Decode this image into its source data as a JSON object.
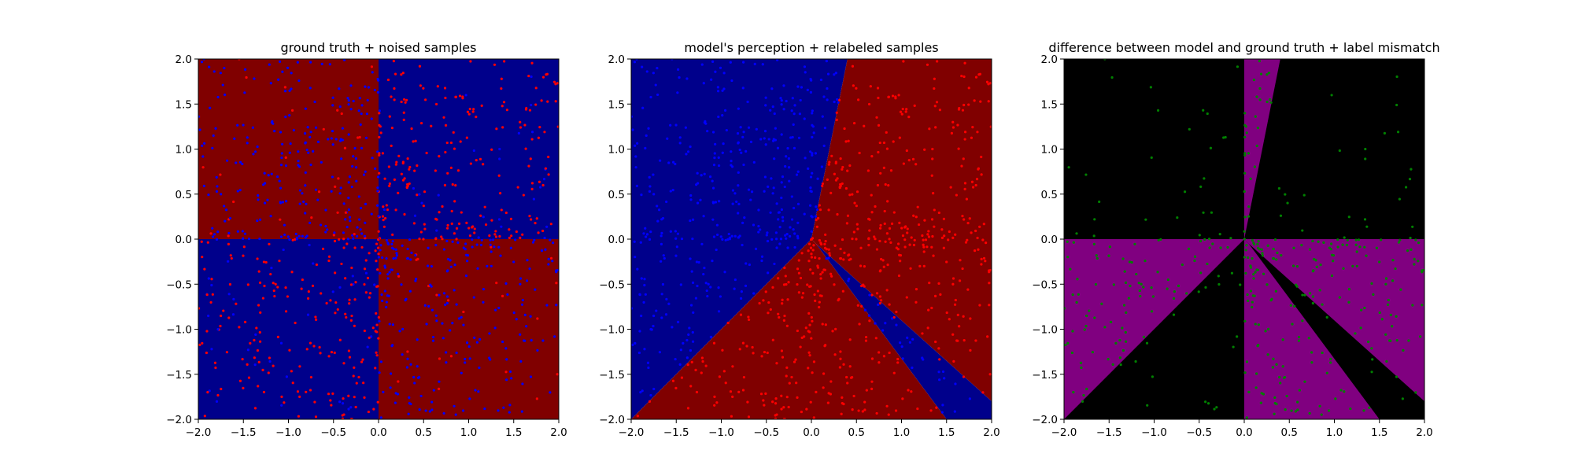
{
  "colors": {
    "red": "#800000",
    "blue": "#00008b",
    "purple": "#800080",
    "black": "#000000",
    "point_red": "#ff0000",
    "point_blue": "#0000ff",
    "point_green": "#008000"
  },
  "chart_data": [
    {
      "type": "scatter",
      "title": "ground truth + noised samples",
      "xlim": [
        -2,
        2
      ],
      "ylim": [
        -2,
        2
      ],
      "xticks": [
        "−2.0",
        "−1.5",
        "−1.0",
        "−0.5",
        "0.0",
        "0.5",
        "1.0",
        "1.5",
        "2.0"
      ],
      "yticks": [
        "−2.0",
        "−1.5",
        "−1.0",
        "−0.5",
        "0.0",
        "0.5",
        "1.0",
        "1.5",
        "2.0"
      ],
      "background": "quadrant checkerboard: x·y < 0 red, x·y > 0 blue",
      "regions": [
        {
          "color": "red",
          "polygon": [
            [
              -2,
              0
            ],
            [
              0,
              0
            ],
            [
              0,
              2
            ],
            [
              -2,
              2
            ]
          ]
        },
        {
          "color": "blue",
          "polygon": [
            [
              0,
              0
            ],
            [
              2,
              0
            ],
            [
              2,
              2
            ],
            [
              0,
              2
            ]
          ]
        },
        {
          "color": "blue",
          "polygon": [
            [
              -2,
              -2
            ],
            [
              0,
              -2
            ],
            [
              0,
              0
            ],
            [
              -2,
              0
            ]
          ]
        },
        {
          "color": "red",
          "polygon": [
            [
              0,
              -2
            ],
            [
              2,
              -2
            ],
            [
              2,
              0
            ],
            [
              0,
              0
            ]
          ]
        }
      ],
      "series": [
        {
          "marker_color": "point_red",
          "label_rule": "x·y > 0 (mostly, with noise)"
        },
        {
          "marker_color": "point_blue",
          "label_rule": "x·y < 0 (mostly, with noise)"
        }
      ],
      "n_points_approx": 1000,
      "point_distribution": "denser near origin"
    },
    {
      "type": "scatter",
      "title": "model's perception + relabeled samples",
      "xlim": [
        -2,
        2
      ],
      "ylim": [
        -2,
        2
      ],
      "xticks": [
        "−2.0",
        "−1.5",
        "−1.0",
        "−0.5",
        "0.0",
        "0.5",
        "1.0",
        "1.5",
        "2.0"
      ],
      "yticks": [
        "−2.0",
        "−1.5",
        "−1.0",
        "−0.5",
        "0.0",
        "0.5",
        "1.0",
        "1.5",
        "2.0"
      ],
      "regions": [
        {
          "color": "blue",
          "polygon": [
            [
              -2,
              -2
            ],
            [
              0,
              0
            ],
            [
              0.4,
              2
            ],
            [
              -2,
              2
            ]
          ]
        },
        {
          "color": "red",
          "polygon": [
            [
              0,
              0
            ],
            [
              0.4,
              2
            ],
            [
              2,
              2
            ],
            [
              2,
              -1.8
            ],
            [
              0.05,
              -0.05
            ]
          ]
        },
        {
          "color": "blue",
          "polygon": [
            [
              0.05,
              -0.05
            ],
            [
              2,
              -1.8
            ],
            [
              2,
              -2
            ],
            [
              1.5,
              -2
            ]
          ]
        },
        {
          "color": "red",
          "polygon": [
            [
              0,
              0
            ],
            [
              0.05,
              -0.05
            ],
            [
              1.5,
              -2
            ],
            [
              -2,
              -2
            ]
          ]
        }
      ],
      "series": [
        {
          "marker_color": "point_red",
          "label_rule": "point lies in red model region"
        },
        {
          "marker_color": "point_blue",
          "label_rule": "point lies in blue model region"
        }
      ],
      "n_points_approx": 1000
    },
    {
      "type": "scatter",
      "title": "difference between model and ground truth + label mismatch",
      "xlim": [
        -2,
        2
      ],
      "ylim": [
        -2,
        2
      ],
      "xticks": [
        "−2.0",
        "−1.5",
        "−1.0",
        "−0.5",
        "0.0",
        "0.5",
        "1.0",
        "1.5",
        "2.0"
      ],
      "yticks": [
        "−2.0",
        "−1.5",
        "−1.0",
        "−0.5",
        "0.0",
        "0.5",
        "1.0",
        "1.5",
        "2.0"
      ],
      "regions": [
        {
          "color": "black",
          "polygon": [
            [
              -2,
              -2
            ],
            [
              2,
              -2
            ],
            [
              2,
              2
            ],
            [
              -2,
              2
            ]
          ]
        },
        {
          "color": "purple",
          "polygon": [
            [
              0,
              0
            ],
            [
              0,
              2
            ],
            [
              0.4,
              2
            ]
          ]
        },
        {
          "color": "purple",
          "polygon": [
            [
              0,
              0
            ],
            [
              -2,
              -2
            ],
            [
              -2,
              0
            ]
          ]
        },
        {
          "color": "purple",
          "polygon": [
            [
              0,
              0
            ],
            [
              2,
              0
            ],
            [
              2,
              -1.8
            ],
            [
              0.05,
              -0.05
            ]
          ]
        },
        {
          "color": "purple",
          "polygon": [
            [
              0,
              0
            ],
            [
              0.05,
              -0.05
            ],
            [
              1.5,
              -2
            ],
            [
              0,
              -2
            ]
          ]
        }
      ],
      "series": [
        {
          "marker_color": "point_green",
          "label_rule": "noisy label differs from model label"
        }
      ],
      "point_distribution": "green points concentrated in upper-right and lower-right quadrants, sparse in upper-left and lower-left"
    }
  ]
}
